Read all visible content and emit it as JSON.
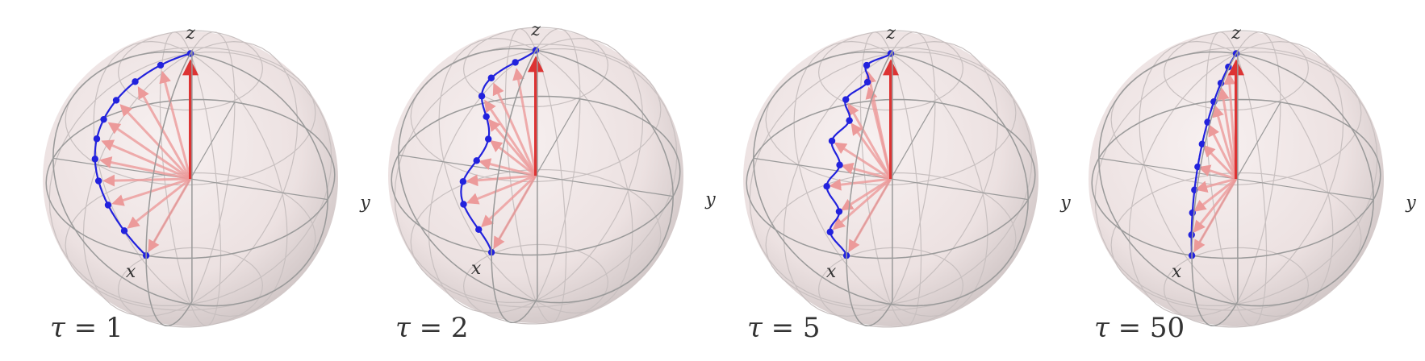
{
  "colors": {
    "sphere_fill": "#e9dcdc",
    "sphere_shade": "#c9bdbd",
    "wire": "#9a9a9a",
    "wire_light": "#c8c0c0",
    "trajectory": "#2222dd",
    "arrow_faded": "#ec9a9a",
    "arrow_main": "#dd3333",
    "label": "#333333"
  },
  "axis_labels": {
    "x": "x",
    "y": "y",
    "z": "z"
  },
  "panels": [
    {
      "label": {
        "symbol": "τ",
        "rest": " = 1"
      },
      "tau": 1
    },
    {
      "label": {
        "symbol": "τ",
        "rest": " = 2"
      },
      "tau": 2
    },
    {
      "label": {
        "symbol": "τ",
        "rest": " = 5"
      },
      "tau": 5
    },
    {
      "label": {
        "symbol": "τ",
        "rest": " = 50"
      },
      "tau": 50
    }
  ]
}
